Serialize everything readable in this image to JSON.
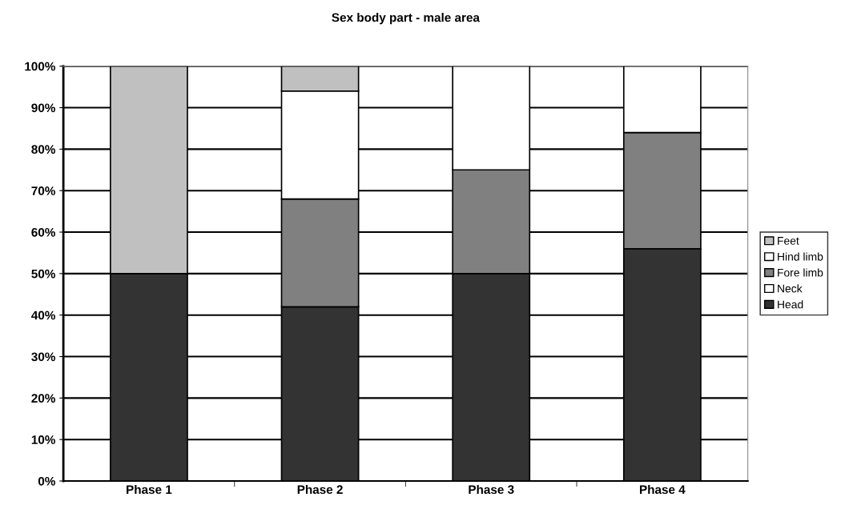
{
  "chart_data": {
    "type": "bar",
    "title": "Sex body part - male area",
    "stacked": true,
    "categories": [
      "Phase 1",
      "Phase 2",
      "Phase 3",
      "Phase 4"
    ],
    "series": [
      {
        "name": "Head",
        "color": "#333333",
        "values": [
          50,
          42,
          50,
          56
        ]
      },
      {
        "name": "Neck",
        "color": "#ffffff",
        "values": [
          0,
          0,
          0,
          0
        ]
      },
      {
        "name": "Fore limb",
        "color": "#808080",
        "values": [
          0,
          26,
          25,
          28
        ]
      },
      {
        "name": "Hind limb",
        "color": "#ffffff",
        "values": [
          0,
          26,
          25,
          16
        ]
      },
      {
        "name": "Feet",
        "color": "#c0c0c0",
        "values": [
          50,
          6,
          0,
          0
        ]
      }
    ],
    "ylim": [
      0,
      100
    ],
    "yticks": [
      {
        "value": 0,
        "label": "0%"
      },
      {
        "value": 10,
        "label": "10%"
      },
      {
        "value": 20,
        "label": "20%"
      },
      {
        "value": 30,
        "label": "30%"
      },
      {
        "value": 40,
        "label": "40%"
      },
      {
        "value": 50,
        "label": "50%"
      },
      {
        "value": 60,
        "label": "60%"
      },
      {
        "value": 70,
        "label": "70%"
      },
      {
        "value": 80,
        "label": "80%"
      },
      {
        "value": 90,
        "label": "90%"
      },
      {
        "value": 100,
        "label": "100%"
      }
    ],
    "grid": "y",
    "legend": "right"
  }
}
